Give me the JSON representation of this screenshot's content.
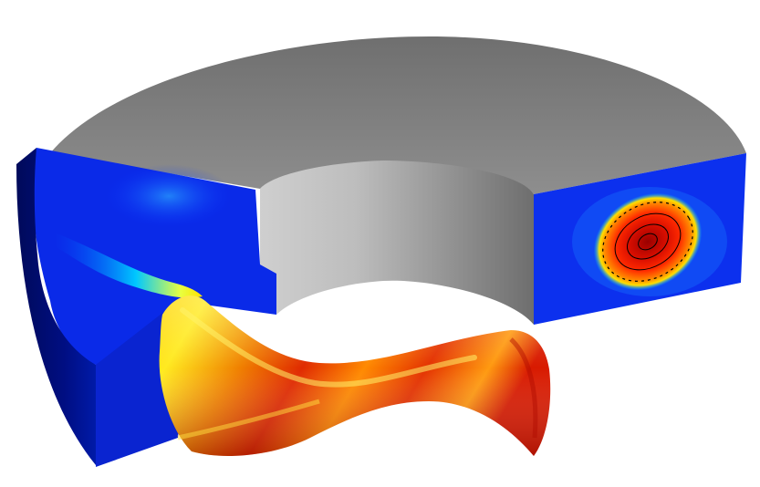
{
  "scene": {
    "subject": "cutaway-annular-duct-with-twisted-flow-tube",
    "colormap": [
      "#00008b",
      "#0033ff",
      "#00ccff",
      "#ffff00",
      "#ff8800",
      "#dd1100"
    ],
    "surface_gray": "#8c8c8c",
    "background": "#ffffff",
    "icons": [
      "hotspot-contour-icon"
    ]
  }
}
